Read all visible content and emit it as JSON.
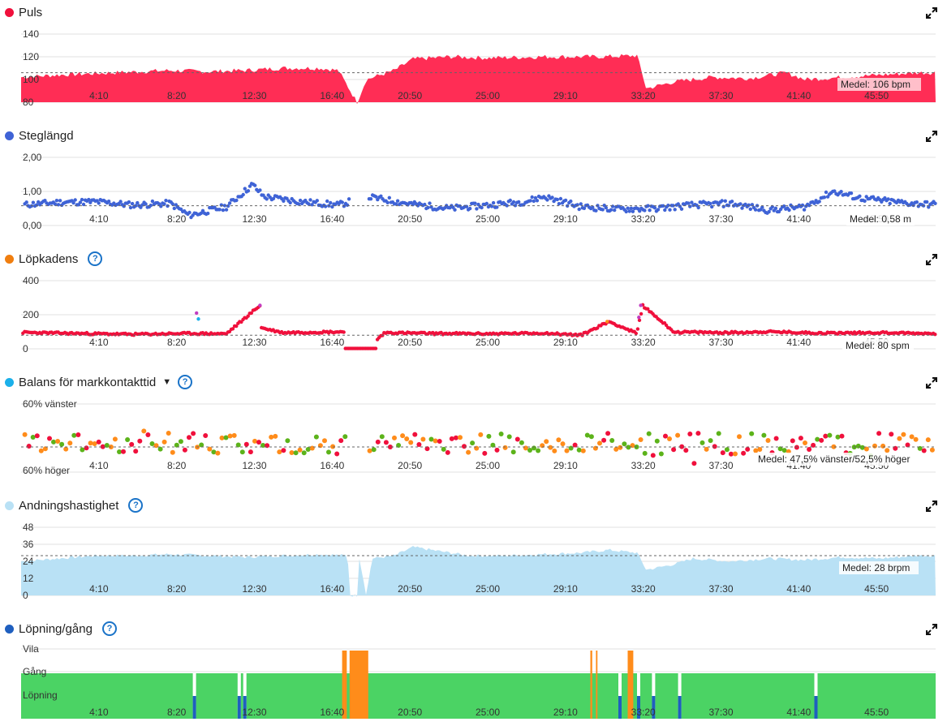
{
  "x_ticks": [
    "4:10",
    "8:20",
    "12:30",
    "16:40",
    "20:50",
    "25:00",
    "29:10",
    "33:20",
    "37:30",
    "41:40",
    "45:50"
  ],
  "expand_icon": "expand-icon",
  "help_icon": "help-icon",
  "colors": {
    "puls": "#ff2d55",
    "steg": "#3f63d6",
    "kadens": "#f07e0f",
    "balans": "#1bb0ea",
    "andning": "#b9e1f5",
    "lopning": "#1f5fbf",
    "green": "#4bd364",
    "orange": "#ff8c1a",
    "red": "#f0103c",
    "purple": "#c23cc0"
  },
  "panels": {
    "puls": {
      "title": "Puls",
      "y_ticks": [
        "140",
        "120",
        "100",
        "80"
      ],
      "mean_label": "Medel: 106 bpm"
    },
    "steg": {
      "title": "Steglängd",
      "y_ticks": [
        "2,00",
        "1,00",
        "0,00"
      ],
      "mean_label": "Medel: 0,58 m"
    },
    "kadens": {
      "title": "Löpkadens",
      "y_ticks": [
        "400",
        "200",
        "0"
      ],
      "mean_label": "Medel: 80 spm"
    },
    "balans": {
      "title": "Balans för markkontakttid",
      "y_ticks": [
        "60% vänster",
        "60% höger"
      ],
      "mean_label": "Medel: 47,5% vänster/52,5% höger"
    },
    "andning": {
      "title": "Andningshastighet",
      "y_ticks": [
        "48",
        "36",
        "24",
        "12",
        "0"
      ],
      "mean_label": "Medel: 28 brpm"
    },
    "lopning": {
      "title": "Löpning/gång",
      "y_ticks": [
        "Vila",
        "Gång",
        "Löpning"
      ]
    }
  },
  "chart_data": [
    {
      "type": "area",
      "title": "Puls",
      "x_range": [
        "0:00",
        "49:00"
      ],
      "ylim": [
        80,
        140
      ],
      "mean": 106,
      "series": [
        {
          "name": "Puls",
          "points": [
            [
              0,
              102
            ],
            [
              2,
              104
            ],
            [
              5,
              106
            ],
            [
              8,
              108
            ],
            [
              10,
              107
            ],
            [
              12,
              108
            ],
            [
              14,
              110
            ],
            [
              16,
              110
            ],
            [
              17,
              108
            ],
            [
              18,
              80
            ],
            [
              18.5,
              100
            ],
            [
              20,
              108
            ],
            [
              21,
              118
            ],
            [
              23,
              120
            ],
            [
              25,
              119
            ],
            [
              28,
              120
            ],
            [
              31,
              120
            ],
            [
              33,
              121
            ],
            [
              33.5,
              92
            ],
            [
              35,
              98
            ],
            [
              37,
              102
            ],
            [
              39,
              101
            ],
            [
              41,
              106
            ],
            [
              42,
              100
            ],
            [
              44,
              102
            ],
            [
              46,
              104
            ],
            [
              48,
              106
            ]
          ]
        }
      ]
    },
    {
      "type": "scatter",
      "title": "Steglängd",
      "x_range": [
        "0:00",
        "49:00"
      ],
      "ylim": [
        0,
        2
      ],
      "mean": 0.58,
      "series": [
        {
          "name": "Steglängd",
          "points": [
            [
              0.5,
              0.62
            ],
            [
              2,
              0.68
            ],
            [
              4,
              0.7
            ],
            [
              6,
              0.6
            ],
            [
              8,
              0.65
            ],
            [
              9,
              0.3
            ],
            [
              11,
              0.55
            ],
            [
              12.4,
              1.2
            ],
            [
              13,
              0.85
            ],
            [
              15,
              0.7
            ],
            [
              17,
              0.6
            ],
            [
              18.5,
              0.85
            ],
            [
              21,
              0.62
            ],
            [
              23,
              0.5
            ],
            [
              25,
              0.6
            ],
            [
              27,
              0.7
            ],
            [
              28,
              0.85
            ],
            [
              30,
              0.55
            ],
            [
              32,
              0.48
            ],
            [
              34,
              0.5
            ],
            [
              36,
              0.6
            ],
            [
              38,
              0.65
            ],
            [
              40,
              0.45
            ],
            [
              42,
              0.55
            ],
            [
              43.5,
              1.0
            ],
            [
              45,
              0.8
            ],
            [
              47,
              0.68
            ],
            [
              48.5,
              0.62
            ]
          ]
        }
      ]
    },
    {
      "type": "scatter",
      "title": "Löpkadens",
      "x_range": [
        "0:00",
        "49:00"
      ],
      "ylim": [
        0,
        400
      ],
      "mean": 80,
      "series": [
        {
          "name": "Löpkadens",
          "points": [
            [
              0.5,
              95
            ],
            [
              3,
              90
            ],
            [
              6,
              85
            ],
            [
              9,
              90
            ],
            [
              11,
              88
            ],
            [
              12.8,
              255
            ],
            [
              9.4,
              210
            ],
            [
              14,
              95
            ],
            [
              16,
              98
            ],
            [
              17.5,
              100
            ],
            [
              18.5,
              0
            ],
            [
              19.5,
              95
            ],
            [
              22,
              90
            ],
            [
              25,
              88
            ],
            [
              28,
              92
            ],
            [
              30,
              80
            ],
            [
              31.5,
              160
            ],
            [
              33,
              90
            ],
            [
              33.3,
              255
            ],
            [
              35,
              98
            ],
            [
              38,
              95
            ],
            [
              40,
              100
            ],
            [
              43,
              92
            ],
            [
              46,
              95
            ],
            [
              48.5,
              90
            ]
          ]
        }
      ]
    },
    {
      "type": "scatter",
      "title": "Balans för markkontakttid",
      "x_range": [
        "0:00",
        "49:00"
      ],
      "ylim": [
        "60% höger",
        "60% vänster"
      ],
      "mean": "47,5% vänster/52,5% höger"
    },
    {
      "type": "area",
      "title": "Andningshastighet",
      "x_range": [
        "0:00",
        "49:00"
      ],
      "ylim": [
        0,
        48
      ],
      "mean": 28,
      "series": [
        {
          "name": "Andningshastighet",
          "points": [
            [
              0,
              24
            ],
            [
              2,
              26
            ],
            [
              4,
              28
            ],
            [
              6,
              28
            ],
            [
              8,
              29
            ],
            [
              10,
              28
            ],
            [
              12,
              27
            ],
            [
              14,
              28
            ],
            [
              16,
              29
            ],
            [
              17.5,
              28
            ],
            [
              17.6,
              0
            ],
            [
              18,
              0
            ],
            [
              18.1,
              28
            ],
            [
              18.5,
              0
            ],
            [
              18.8,
              26
            ],
            [
              20,
              28
            ],
            [
              21,
              34
            ],
            [
              22,
              32
            ],
            [
              24,
              28
            ],
            [
              26,
              28
            ],
            [
              28,
              29
            ],
            [
              30,
              30
            ],
            [
              31.5,
              32
            ],
            [
              33,
              30
            ],
            [
              33.5,
              18
            ],
            [
              35,
              22
            ],
            [
              36,
              26
            ],
            [
              38,
              24
            ],
            [
              40,
              26
            ],
            [
              42,
              25
            ],
            [
              44,
              27
            ],
            [
              46,
              26
            ],
            [
              48,
              28
            ]
          ]
        }
      ]
    },
    {
      "type": "bar",
      "title": "Löpning/gång",
      "x_range": [
        "0:00",
        "49:00"
      ],
      "categories": [
        "Vila",
        "Gång",
        "Löpning"
      ]
    }
  ]
}
